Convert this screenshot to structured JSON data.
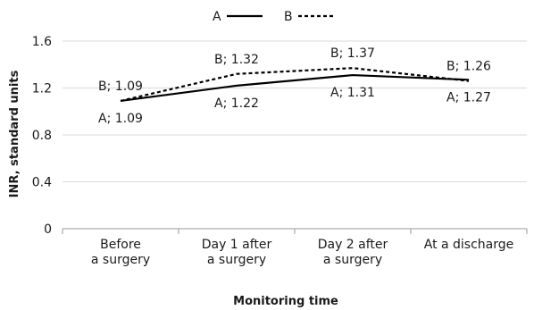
{
  "chart_data": {
    "type": "line",
    "categories": [
      [
        "Before",
        "a surgery"
      ],
      [
        "Day 1 after",
        "a surgery"
      ],
      [
        "Day 2 after",
        "a surgery"
      ],
      [
        "At a discharge"
      ]
    ],
    "series": [
      {
        "name": "A",
        "values": [
          1.09,
          1.22,
          1.31,
          1.27
        ],
        "line_style": "solid",
        "labels": [
          "A; 1.09",
          "A; 1.22",
          "A; 1.31",
          "A; 1.27"
        ]
      },
      {
        "name": "B",
        "values": [
          1.09,
          1.32,
          1.37,
          1.26
        ],
        "line_style": "dotted",
        "labels": [
          "B; 1.09",
          "B; 1.32",
          "B; 1.37",
          "B; 1.26"
        ]
      }
    ],
    "xlabel": "Monitoring time",
    "ylabel": "INR, standard units",
    "ylim": [
      0,
      1.6
    ],
    "yticks": [
      "0",
      "0.4",
      "0.8",
      "1.2",
      "1.6"
    ],
    "grid": true,
    "legend_position": "top-center",
    "line_color": "#000000"
  }
}
